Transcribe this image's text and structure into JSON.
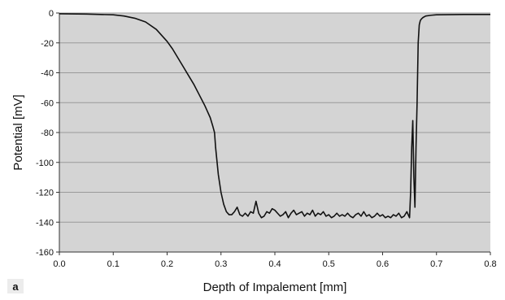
{
  "chart_data": {
    "type": "line",
    "title": "",
    "panel_label": "a",
    "xlabel": "Depth of Impalement [mm]",
    "ylabel": "Potential [mV]",
    "xlim": [
      0.0,
      0.8
    ],
    "ylim": [
      -160,
      0
    ],
    "x_ticks": [
      "0.0",
      "0.1",
      "0.2",
      "0.3",
      "0.4",
      "0.5",
      "0.6",
      "0.7",
      "0.8"
    ],
    "y_ticks": [
      "0",
      "-20",
      "-40",
      "-60",
      "-80",
      "-100",
      "-120",
      "-140",
      "-160"
    ],
    "grid": "horizontal",
    "legend": "none",
    "colors": {
      "plot_background": "#d4d4d4",
      "line": "#111111",
      "gridline": "#9a9a9a"
    },
    "series": [
      {
        "x": [
          0.0,
          0.05,
          0.1,
          0.12,
          0.14,
          0.16,
          0.18,
          0.2,
          0.21,
          0.22,
          0.23,
          0.24,
          0.25,
          0.26,
          0.27,
          0.28,
          0.285,
          0.288,
          0.29,
          0.295,
          0.3,
          0.305,
          0.31,
          0.315,
          0.32,
          0.325,
          0.33,
          0.335,
          0.34,
          0.345,
          0.35,
          0.355,
          0.36,
          0.365,
          0.37,
          0.375,
          0.38,
          0.385,
          0.39,
          0.395,
          0.4,
          0.405,
          0.41,
          0.415,
          0.42,
          0.425,
          0.43,
          0.435,
          0.44,
          0.445,
          0.45,
          0.455,
          0.46,
          0.465,
          0.47,
          0.475,
          0.48,
          0.485,
          0.49,
          0.495,
          0.5,
          0.505,
          0.51,
          0.515,
          0.52,
          0.525,
          0.53,
          0.535,
          0.54,
          0.545,
          0.55,
          0.555,
          0.56,
          0.565,
          0.57,
          0.575,
          0.58,
          0.585,
          0.59,
          0.595,
          0.6,
          0.605,
          0.61,
          0.615,
          0.62,
          0.625,
          0.63,
          0.635,
          0.64,
          0.645,
          0.65,
          0.652,
          0.654,
          0.656,
          0.658,
          0.66,
          0.662,
          0.664,
          0.666,
          0.668,
          0.67,
          0.672,
          0.675,
          0.68,
          0.69,
          0.7,
          0.75,
          0.8
        ],
        "y": [
          -0.5,
          -0.7,
          -1.2,
          -2.0,
          -3.5,
          -6.0,
          -11.0,
          -19.0,
          -24.0,
          -30.0,
          -36.0,
          -42.0,
          -48.0,
          -55.0,
          -62.0,
          -70.0,
          -76.0,
          -80.0,
          -90.0,
          -108.0,
          -120.0,
          -128.0,
          -133.0,
          -135.0,
          -135.0,
          -133.0,
          -130.0,
          -135.0,
          -136.0,
          -134.0,
          -136.0,
          -133.0,
          -134.0,
          -126.0,
          -134.0,
          -137.0,
          -136.0,
          -133.0,
          -134.0,
          -131.0,
          -132.0,
          -134.0,
          -136.0,
          -135.0,
          -133.0,
          -137.0,
          -134.0,
          -132.0,
          -135.0,
          -134.0,
          -133.0,
          -136.0,
          -134.0,
          -135.0,
          -132.0,
          -136.0,
          -134.0,
          -135.0,
          -133.0,
          -136.0,
          -135.0,
          -137.0,
          -136.0,
          -134.0,
          -136.0,
          -135.0,
          -136.0,
          -134.0,
          -136.0,
          -137.0,
          -135.0,
          -134.0,
          -136.0,
          -133.0,
          -136.0,
          -135.0,
          -137.0,
          -136.0,
          -134.0,
          -136.0,
          -135.0,
          -137.0,
          -136.0,
          -137.0,
          -135.0,
          -136.0,
          -134.0,
          -137.0,
          -136.0,
          -133.0,
          -137.0,
          -120.0,
          -90.0,
          -72.0,
          -110.0,
          -130.0,
          -90.0,
          -60.0,
          -20.0,
          -8.0,
          -5.0,
          -4.0,
          -3.0,
          -2.0,
          -1.5,
          -1.2,
          -1.0,
          -1.0
        ]
      }
    ]
  }
}
